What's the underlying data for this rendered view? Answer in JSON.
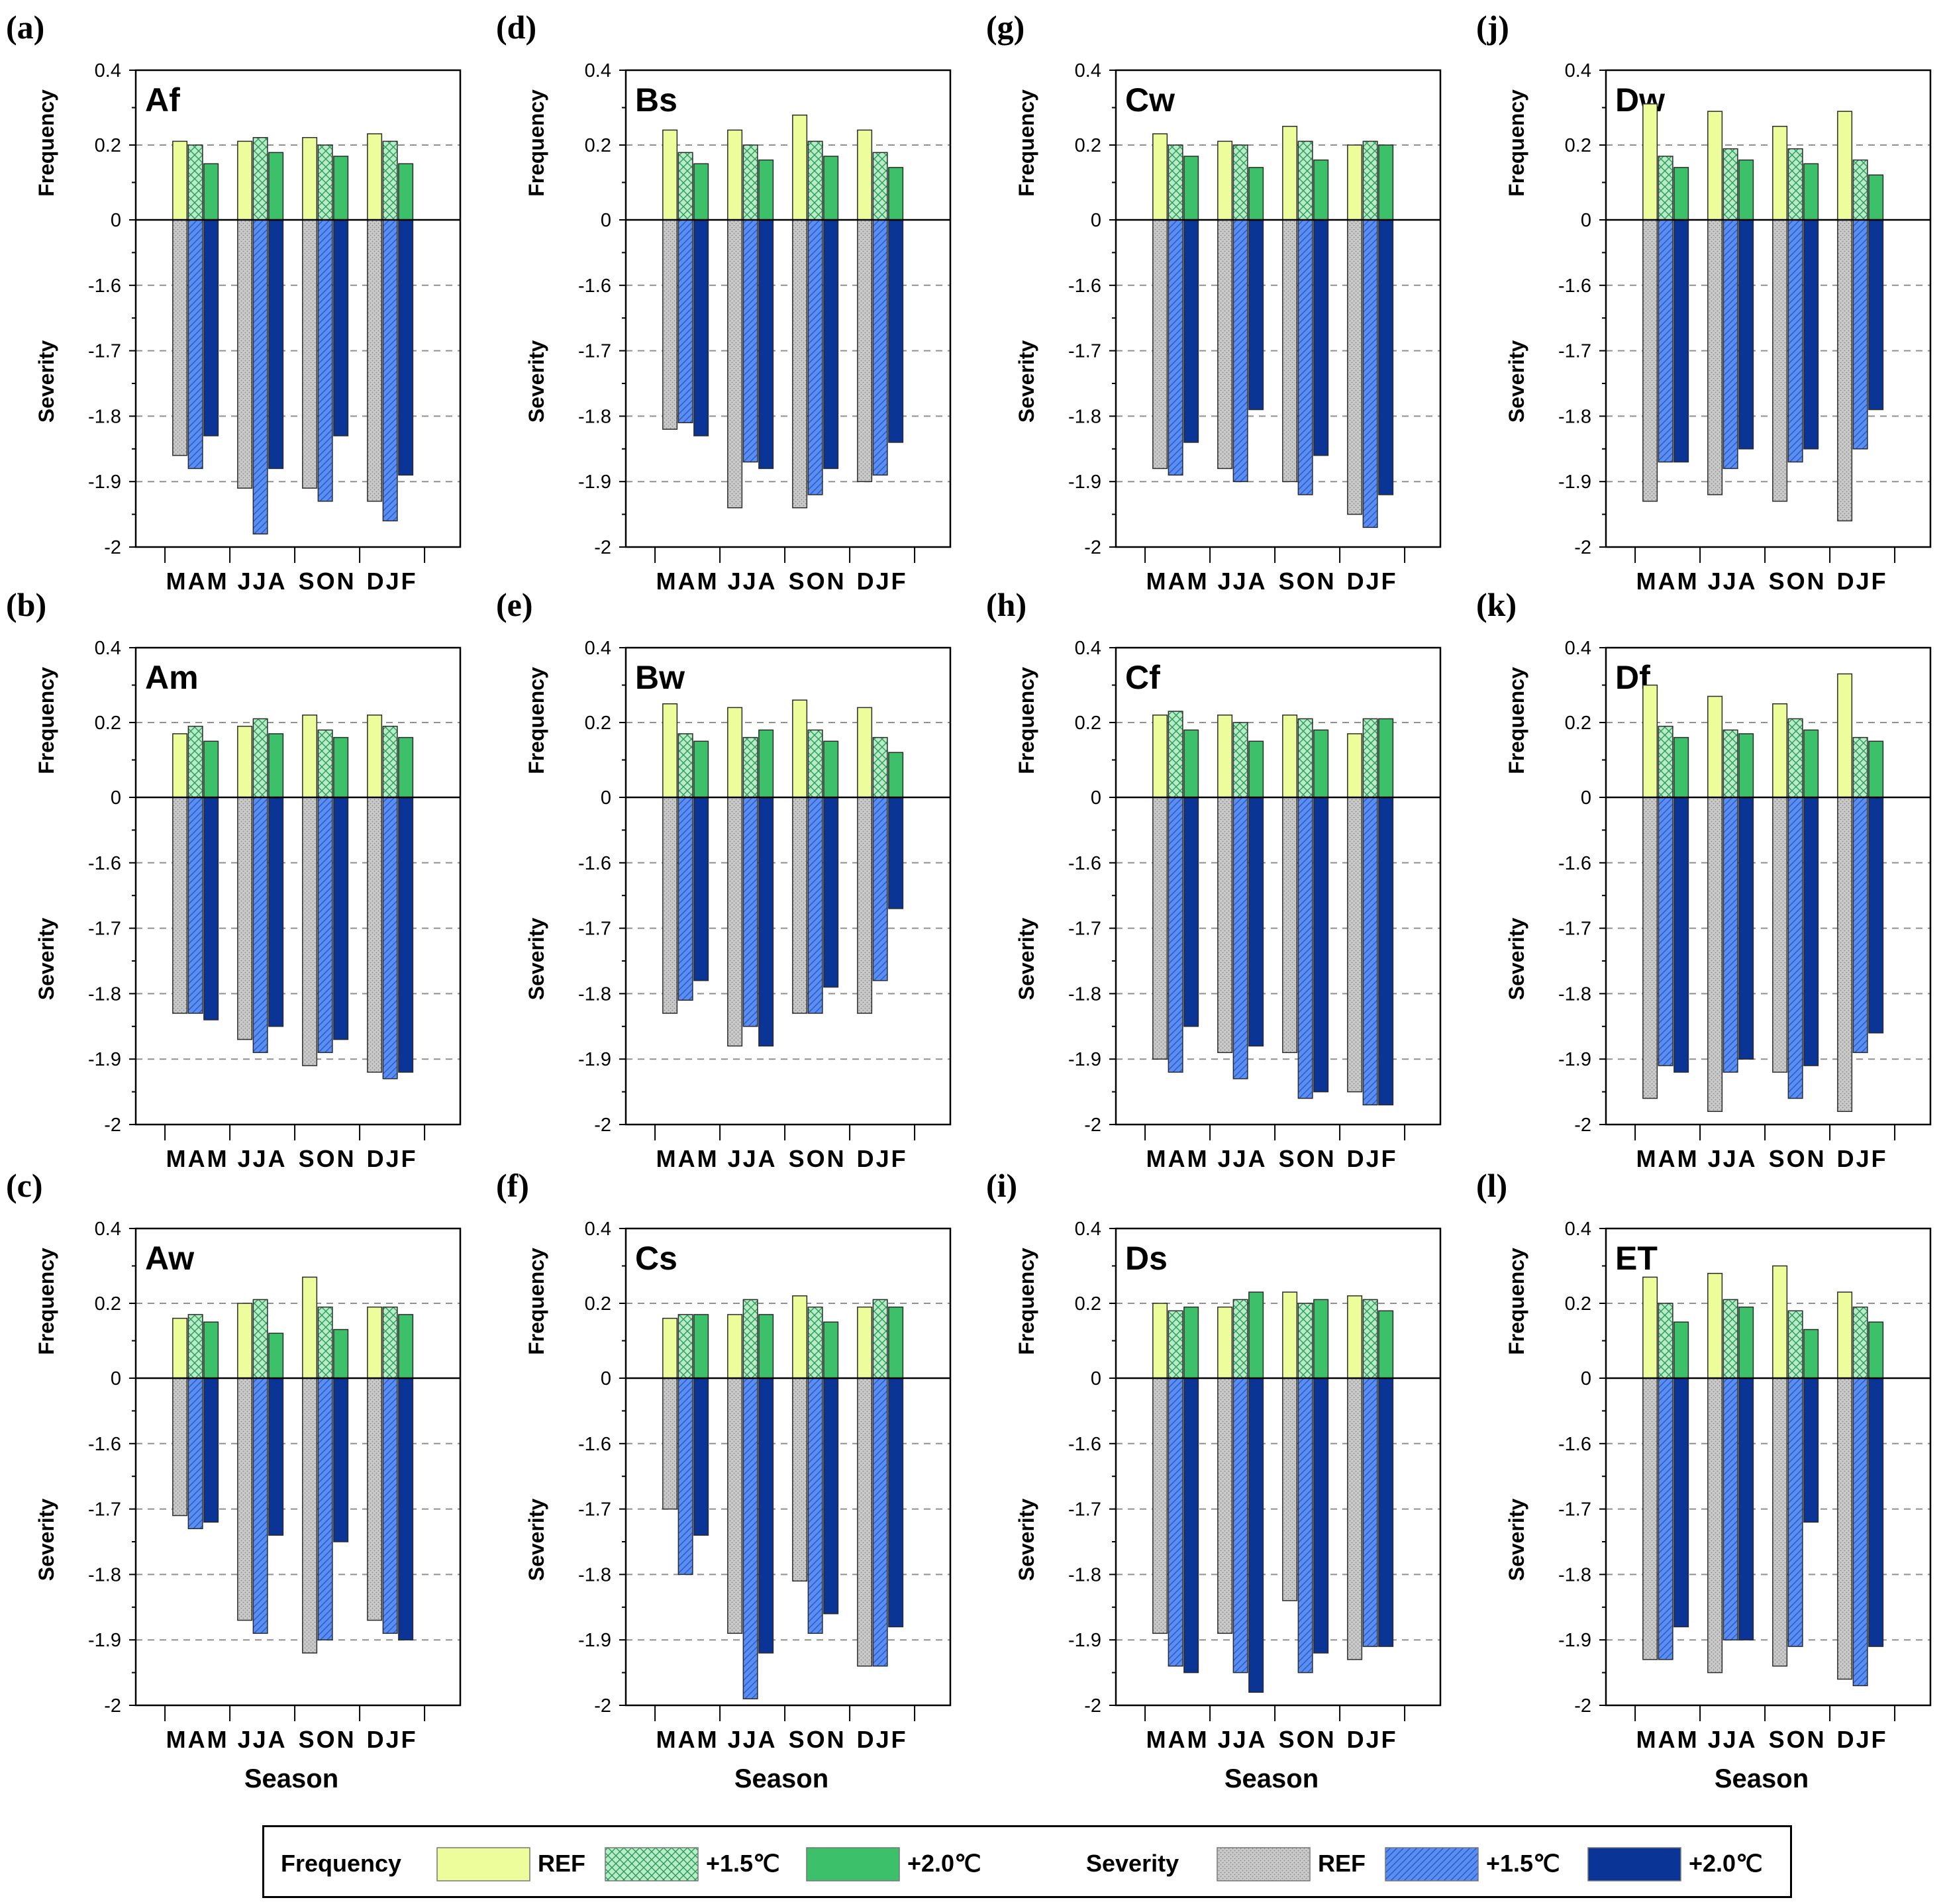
{
  "colors": {
    "freq_ref": "#eefd9b",
    "freq_15": "#b6ecc8",
    "freq_20": "#3cc06a",
    "sev_ref": "#c9c9c9",
    "sev_15": "#5b8ef0",
    "sev_20": "#0a3496"
  },
  "axis": {
    "freq_label": "Frequency",
    "sev_label": "Severity",
    "x_title": "Season",
    "freq_ticks": [
      "0.4",
      "0.2",
      "0"
    ],
    "sev_ticks": [
      "-1.6",
      "-1.7",
      "-1.8",
      "-1.9",
      "-2"
    ]
  },
  "legend": {
    "freq_title": "Frequency",
    "sev_title": "Severity",
    "ref": "REF",
    "p15": "+1.5℃",
    "p20": "+2.0℃"
  },
  "chart_data": [
    {
      "panel": "(a)",
      "climate": "Af",
      "type": "bar",
      "categories": [
        "MAM",
        "JJA",
        "SON",
        "DJF"
      ],
      "freq_ylim": [
        0,
        0.4
      ],
      "sev_ylim": [
        -2,
        -1.5
      ],
      "series": [
        {
          "name": "Frequency REF",
          "values": [
            0.21,
            0.21,
            0.22,
            0.23
          ]
        },
        {
          "name": "Frequency +1.5℃",
          "values": [
            0.2,
            0.22,
            0.2,
            0.21
          ]
        },
        {
          "name": "Frequency +2.0℃",
          "values": [
            0.15,
            0.18,
            0.17,
            0.15
          ]
        },
        {
          "name": "Severity REF",
          "values": [
            -1.86,
            -1.91,
            -1.91,
            -1.93
          ]
        },
        {
          "name": "Severity +1.5℃",
          "values": [
            -1.88,
            -1.98,
            -1.93,
            -1.96
          ]
        },
        {
          "name": "Severity +2.0℃",
          "values": [
            -1.83,
            -1.88,
            -1.83,
            -1.89
          ]
        }
      ]
    },
    {
      "panel": "(b)",
      "climate": "Am",
      "type": "bar",
      "categories": [
        "MAM",
        "JJA",
        "SON",
        "DJF"
      ],
      "freq_ylim": [
        0,
        0.4
      ],
      "sev_ylim": [
        -2,
        -1.5
      ],
      "series": [
        {
          "name": "Frequency REF",
          "values": [
            0.17,
            0.19,
            0.22,
            0.22
          ]
        },
        {
          "name": "Frequency +1.5℃",
          "values": [
            0.19,
            0.21,
            0.18,
            0.19
          ]
        },
        {
          "name": "Frequency +2.0℃",
          "values": [
            0.15,
            0.17,
            0.16,
            0.16
          ]
        },
        {
          "name": "Severity REF",
          "values": [
            -1.83,
            -1.87,
            -1.91,
            -1.92
          ]
        },
        {
          "name": "Severity +1.5℃",
          "values": [
            -1.83,
            -1.89,
            -1.89,
            -1.93
          ]
        },
        {
          "name": "Severity +2.0℃",
          "values": [
            -1.84,
            -1.85,
            -1.87,
            -1.92
          ]
        }
      ]
    },
    {
      "panel": "(c)",
      "climate": "Aw",
      "type": "bar",
      "categories": [
        "MAM",
        "JJA",
        "SON",
        "DJF"
      ],
      "freq_ylim": [
        0,
        0.4
      ],
      "sev_ylim": [
        -2,
        -1.5
      ],
      "series": [
        {
          "name": "Frequency REF",
          "values": [
            0.16,
            0.2,
            0.27,
            0.19
          ]
        },
        {
          "name": "Frequency +1.5℃",
          "values": [
            0.17,
            0.21,
            0.19,
            0.19
          ]
        },
        {
          "name": "Frequency +2.0℃",
          "values": [
            0.15,
            0.12,
            0.13,
            0.17
          ]
        },
        {
          "name": "Severity REF",
          "values": [
            -1.71,
            -1.87,
            -1.92,
            -1.87
          ]
        },
        {
          "name": "Severity +1.5℃",
          "values": [
            -1.73,
            -1.89,
            -1.9,
            -1.89
          ]
        },
        {
          "name": "Severity +2.0℃",
          "values": [
            -1.72,
            -1.74,
            -1.75,
            -1.9
          ]
        }
      ]
    },
    {
      "panel": "(d)",
      "climate": "Bs",
      "type": "bar",
      "categories": [
        "MAM",
        "JJA",
        "SON",
        "DJF"
      ],
      "freq_ylim": [
        0,
        0.4
      ],
      "sev_ylim": [
        -2,
        -1.5
      ],
      "series": [
        {
          "name": "Frequency REF",
          "values": [
            0.24,
            0.24,
            0.28,
            0.24
          ]
        },
        {
          "name": "Frequency +1.5℃",
          "values": [
            0.18,
            0.2,
            0.21,
            0.18
          ]
        },
        {
          "name": "Frequency +2.0℃",
          "values": [
            0.15,
            0.16,
            0.17,
            0.14
          ]
        },
        {
          "name": "Severity REF",
          "values": [
            -1.82,
            -1.94,
            -1.94,
            -1.9
          ]
        },
        {
          "name": "Severity +1.5℃",
          "values": [
            -1.81,
            -1.87,
            -1.92,
            -1.89
          ]
        },
        {
          "name": "Severity +2.0℃",
          "values": [
            -1.83,
            -1.88,
            -1.88,
            -1.84
          ]
        }
      ]
    },
    {
      "panel": "(e)",
      "climate": "Bw",
      "type": "bar",
      "categories": [
        "MAM",
        "JJA",
        "SON",
        "DJF"
      ],
      "freq_ylim": [
        0,
        0.4
      ],
      "sev_ylim": [
        -2,
        -1.5
      ],
      "series": [
        {
          "name": "Frequency REF",
          "values": [
            0.25,
            0.24,
            0.26,
            0.24
          ]
        },
        {
          "name": "Frequency +1.5℃",
          "values": [
            0.17,
            0.16,
            0.18,
            0.16
          ]
        },
        {
          "name": "Frequency +2.0℃",
          "values": [
            0.15,
            0.18,
            0.15,
            0.12
          ]
        },
        {
          "name": "Severity REF",
          "values": [
            -1.83,
            -1.88,
            -1.83,
            -1.83
          ]
        },
        {
          "name": "Severity +1.5℃",
          "values": [
            -1.81,
            -1.85,
            -1.83,
            -1.78
          ]
        },
        {
          "name": "Severity +2.0℃",
          "values": [
            -1.78,
            -1.88,
            -1.79,
            -1.67
          ]
        }
      ]
    },
    {
      "panel": "(f)",
      "climate": "Cs",
      "type": "bar",
      "categories": [
        "MAM",
        "JJA",
        "SON",
        "DJF"
      ],
      "freq_ylim": [
        0,
        0.4
      ],
      "sev_ylim": [
        -2,
        -1.5
      ],
      "series": [
        {
          "name": "Frequency REF",
          "values": [
            0.16,
            0.17,
            0.22,
            0.19
          ]
        },
        {
          "name": "Frequency +1.5℃",
          "values": [
            0.17,
            0.21,
            0.19,
            0.21
          ]
        },
        {
          "name": "Frequency +2.0℃",
          "values": [
            0.17,
            0.17,
            0.15,
            0.19
          ]
        },
        {
          "name": "Severity REF",
          "values": [
            -1.7,
            -1.89,
            -1.81,
            -1.94
          ]
        },
        {
          "name": "Severity +1.5℃",
          "values": [
            -1.8,
            -1.99,
            -1.89,
            -1.94
          ]
        },
        {
          "name": "Severity +2.0℃",
          "values": [
            -1.74,
            -1.92,
            -1.86,
            -1.88
          ]
        }
      ]
    },
    {
      "panel": "(g)",
      "climate": "Cw",
      "type": "bar",
      "categories": [
        "MAM",
        "JJA",
        "SON",
        "DJF"
      ],
      "freq_ylim": [
        0,
        0.4
      ],
      "sev_ylim": [
        -2,
        -1.5
      ],
      "series": [
        {
          "name": "Frequency REF",
          "values": [
            0.23,
            0.21,
            0.25,
            0.2
          ]
        },
        {
          "name": "Frequency +1.5℃",
          "values": [
            0.2,
            0.2,
            0.21,
            0.21
          ]
        },
        {
          "name": "Frequency +2.0℃",
          "values": [
            0.17,
            0.14,
            0.16,
            0.2
          ]
        },
        {
          "name": "Severity REF",
          "values": [
            -1.88,
            -1.88,
            -1.9,
            -1.95
          ]
        },
        {
          "name": "Severity +1.5℃",
          "values": [
            -1.89,
            -1.9,
            -1.92,
            -1.97
          ]
        },
        {
          "name": "Severity +2.0℃",
          "values": [
            -1.84,
            -1.79,
            -1.86,
            -1.92
          ]
        }
      ]
    },
    {
      "panel": "(h)",
      "climate": "Cf",
      "type": "bar",
      "categories": [
        "MAM",
        "JJA",
        "SON",
        "DJF"
      ],
      "freq_ylim": [
        0,
        0.4
      ],
      "sev_ylim": [
        -2,
        -1.5
      ],
      "series": [
        {
          "name": "Frequency REF",
          "values": [
            0.22,
            0.22,
            0.22,
            0.17
          ]
        },
        {
          "name": "Frequency +1.5℃",
          "values": [
            0.23,
            0.2,
            0.21,
            0.21
          ]
        },
        {
          "name": "Frequency +2.0℃",
          "values": [
            0.18,
            0.15,
            0.18,
            0.21
          ]
        },
        {
          "name": "Severity REF",
          "values": [
            -1.9,
            -1.89,
            -1.89,
            -1.95
          ]
        },
        {
          "name": "Severity +1.5℃",
          "values": [
            -1.92,
            -1.93,
            -1.96,
            -1.97
          ]
        },
        {
          "name": "Severity +2.0℃",
          "values": [
            -1.85,
            -1.88,
            -1.95,
            -1.97
          ]
        }
      ]
    },
    {
      "panel": "(i)",
      "climate": "Ds",
      "type": "bar",
      "categories": [
        "MAM",
        "JJA",
        "SON",
        "DJF"
      ],
      "freq_ylim": [
        0,
        0.4
      ],
      "sev_ylim": [
        -2,
        -1.5
      ],
      "series": [
        {
          "name": "Frequency REF",
          "values": [
            0.2,
            0.19,
            0.23,
            0.22
          ]
        },
        {
          "name": "Frequency +1.5℃",
          "values": [
            0.18,
            0.21,
            0.2,
            0.21
          ]
        },
        {
          "name": "Frequency +2.0℃",
          "values": [
            0.19,
            0.23,
            0.21,
            0.18
          ]
        },
        {
          "name": "Severity REF",
          "values": [
            -1.89,
            -1.89,
            -1.84,
            -1.93
          ]
        },
        {
          "name": "Severity +1.5℃",
          "values": [
            -1.94,
            -1.95,
            -1.95,
            -1.91
          ]
        },
        {
          "name": "Severity +2.0℃",
          "values": [
            -1.95,
            -1.98,
            -1.92,
            -1.91
          ]
        }
      ]
    },
    {
      "panel": "(j)",
      "climate": "Dw",
      "type": "bar",
      "categories": [
        "MAM",
        "JJA",
        "SON",
        "DJF"
      ],
      "freq_ylim": [
        0,
        0.4
      ],
      "sev_ylim": [
        -2,
        -1.5
      ],
      "series": [
        {
          "name": "Frequency REF",
          "values": [
            0.31,
            0.29,
            0.25,
            0.29
          ]
        },
        {
          "name": "Frequency +1.5℃",
          "values": [
            0.17,
            0.19,
            0.19,
            0.16
          ]
        },
        {
          "name": "Frequency +2.0℃",
          "values": [
            0.14,
            0.16,
            0.15,
            0.12
          ]
        },
        {
          "name": "Severity REF",
          "values": [
            -1.93,
            -1.92,
            -1.93,
            -1.96
          ]
        },
        {
          "name": "Severity +1.5℃",
          "values": [
            -1.87,
            -1.88,
            -1.87,
            -1.85
          ]
        },
        {
          "name": "Severity +2.0℃",
          "values": [
            -1.87,
            -1.85,
            -1.85,
            -1.79
          ]
        }
      ]
    },
    {
      "panel": "(k)",
      "climate": "Df",
      "type": "bar",
      "categories": [
        "MAM",
        "JJA",
        "SON",
        "DJF"
      ],
      "freq_ylim": [
        0,
        0.4
      ],
      "sev_ylim": [
        -2,
        -1.5
      ],
      "series": [
        {
          "name": "Frequency REF",
          "values": [
            0.3,
            0.27,
            0.25,
            0.33
          ]
        },
        {
          "name": "Frequency +1.5℃",
          "values": [
            0.19,
            0.18,
            0.21,
            0.16
          ]
        },
        {
          "name": "Frequency +2.0℃",
          "values": [
            0.16,
            0.17,
            0.18,
            0.15
          ]
        },
        {
          "name": "Severity REF",
          "values": [
            -1.96,
            -1.98,
            -1.92,
            -1.98
          ]
        },
        {
          "name": "Severity +1.5℃",
          "values": [
            -1.91,
            -1.92,
            -1.96,
            -1.89
          ]
        },
        {
          "name": "Severity +2.0℃",
          "values": [
            -1.92,
            -1.9,
            -1.91,
            -1.86
          ]
        }
      ]
    },
    {
      "panel": "(l)",
      "climate": "ET",
      "type": "bar",
      "categories": [
        "MAM",
        "JJA",
        "SON",
        "DJF"
      ],
      "freq_ylim": [
        0,
        0.4
      ],
      "sev_ylim": [
        -2,
        -1.5
      ],
      "series": [
        {
          "name": "Frequency REF",
          "values": [
            0.27,
            0.28,
            0.3,
            0.23
          ]
        },
        {
          "name": "Frequency +1.5℃",
          "values": [
            0.2,
            0.21,
            0.18,
            0.19
          ]
        },
        {
          "name": "Frequency +2.0℃",
          "values": [
            0.15,
            0.19,
            0.13,
            0.15
          ]
        },
        {
          "name": "Severity REF",
          "values": [
            -1.93,
            -1.95,
            -1.94,
            -1.96
          ]
        },
        {
          "name": "Severity +1.5℃",
          "values": [
            -1.93,
            -1.9,
            -1.91,
            -1.97
          ]
        },
        {
          "name": "Severity +2.0℃",
          "values": [
            -1.88,
            -1.9,
            -1.72,
            -1.91
          ]
        }
      ]
    }
  ]
}
